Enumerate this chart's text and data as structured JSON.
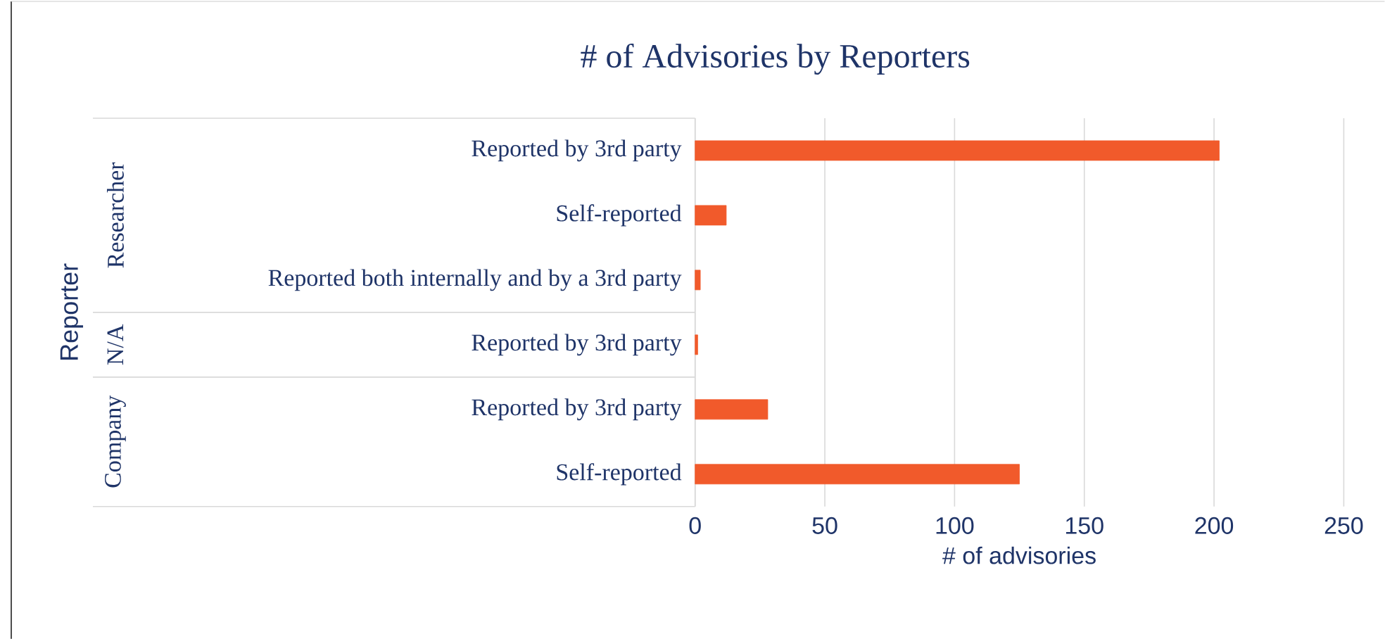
{
  "chart_data": {
    "type": "bar",
    "orientation": "horizontal",
    "title": "# of Advisories by Reporters",
    "categories": [
      "Reported by 3rd party",
      "Self-reported",
      "Reported both internally and by a 3rd party",
      "Reported by 3rd party",
      "Reported by 3rd party",
      "Self-reported"
    ],
    "values": [
      202,
      12,
      2,
      1,
      28,
      125
    ],
    "color": "#f15a2b",
    "xlim": [
      0,
      250
    ],
    "xticks": [
      0,
      50,
      100,
      150,
      200,
      250
    ],
    "grid": "x",
    "xlabel": "# of advisories",
    "annotations": [
      "Reporter",
      "Researcher",
      "N/A",
      "Company"
    ]
  }
}
